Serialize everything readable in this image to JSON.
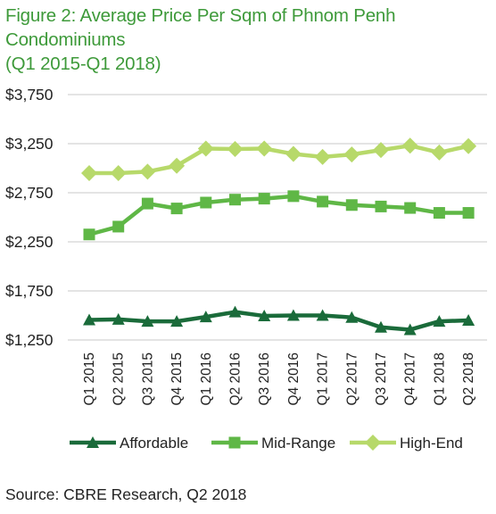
{
  "figure": {
    "title_line1": "Figure 2: Average Price Per Sqm of Phnom Penh Condominiums",
    "title_line2": "(Q1 2015-Q1 2018)",
    "source": "Source: CBRE Research, Q2 2018"
  },
  "chart_data": {
    "type": "line",
    "categories": [
      "Q1 2015",
      "Q2 2015",
      "Q3 2015",
      "Q4 2015",
      "Q1 2016",
      "Q2 2016",
      "Q3 2016",
      "Q4 2016",
      "Q1 2017",
      "Q2 2017",
      "Q3 2017",
      "Q4 2017",
      "Q1 2018",
      "Q2 2018"
    ],
    "ylim": [
      1250,
      3750
    ],
    "yticks": [
      1250,
      1750,
      2250,
      2750,
      3250,
      3750
    ],
    "ytick_labels": [
      "$1,250",
      "$1,750",
      "$2,250",
      "$2,750",
      "$3,250",
      "$3,750"
    ],
    "grid": "horizontal",
    "legend_position": "bottom",
    "series": [
      {
        "name": "Affordable",
        "marker": "triangle",
        "color": "#1a6b3a",
        "values": [
          1455,
          1460,
          1440,
          1440,
          1485,
          1535,
          1495,
          1500,
          1500,
          1480,
          1380,
          1355,
          1440,
          1450
        ]
      },
      {
        "name": "Mid-Range",
        "marker": "square",
        "color": "#5fb746",
        "values": [
          2325,
          2405,
          2640,
          2590,
          2650,
          2680,
          2690,
          2715,
          2660,
          2625,
          2610,
          2595,
          2545,
          2545
        ]
      },
      {
        "name": "High-End",
        "marker": "diamond",
        "color": "#b7d96a",
        "values": [
          2950,
          2950,
          2965,
          3025,
          3200,
          3195,
          3200,
          3145,
          3115,
          3140,
          3185,
          3230,
          3160,
          3225
        ]
      }
    ]
  }
}
